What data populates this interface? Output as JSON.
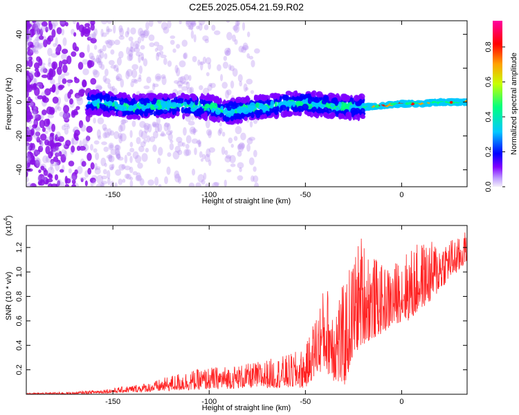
{
  "figure": {
    "title": "C2E5.2025.054.21.59.R02"
  },
  "chart_data": [
    {
      "type": "heatmap",
      "xlabel": "Height of straight line (km)",
      "ylabel": "Frequency (Hz)",
      "xlim": [
        -195,
        34
      ],
      "ylim": [
        -50,
        48
      ],
      "xticks": [
        -150,
        -100,
        -50,
        0
      ],
      "yticks": [
        -40,
        -20,
        0,
        20,
        40
      ],
      "xtick_labels": [
        "-150",
        "-100",
        "-50",
        "0"
      ],
      "ytick_labels": [
        "-40",
        "-20",
        "0",
        "20",
        "40"
      ],
      "colorbar": {
        "label": "Normalized spectral amplitude",
        "range": [
          0,
          0.95
        ],
        "ticks": [
          0.0,
          0.2,
          0.4,
          0.6,
          0.8
        ],
        "tick_labels": [
          "0.0",
          "0.2",
          "0.4",
          "0.6",
          "0.8"
        ],
        "colormap": [
          "#f4f0fa",
          "#8000ff",
          "#0000ff",
          "#00c8ff",
          "#00ff80",
          "#c8ff00",
          "#ffa000",
          "#ff0000",
          "#ff00a0"
        ]
      },
      "center_trace": [
        [
          -160,
          0
        ],
        [
          -140,
          -3
        ],
        [
          -120,
          -2
        ],
        [
          -100,
          -3
        ],
        [
          -90,
          -6
        ],
        [
          -80,
          -4
        ],
        [
          -70,
          -3
        ],
        [
          -60,
          -1
        ],
        [
          -50,
          -1
        ],
        [
          -40,
          -2
        ],
        [
          -30,
          -3
        ],
        [
          -20,
          -3
        ],
        [
          -10,
          -2
        ],
        [
          0,
          -1
        ],
        [
          10,
          -1
        ],
        [
          20,
          0
        ],
        [
          30,
          0
        ]
      ],
      "grid": false
    },
    {
      "type": "line",
      "xlabel": "Height of straight line (km)",
      "ylabel": "SNR (10 * v/v)",
      "y_multiplier": "(x10",
      "y_multiplier_exp": "4",
      "y_multiplier_close": ")",
      "xlim": [
        -195,
        34
      ],
      "ylim": [
        0,
        1.38
      ],
      "xticks": [
        -150,
        -100,
        -50,
        0
      ],
      "yticks": [
        0.2,
        0.4,
        0.6,
        0.8,
        1.0,
        1.2
      ],
      "xtick_labels": [
        "-150",
        "-100",
        "-50",
        "0"
      ],
      "ytick_labels": [
        "0.2",
        "0.4",
        "0.6",
        "0.8",
        "1.0",
        "1.2"
      ],
      "series": [
        {
          "color": "#ff2020",
          "envelope": {
            "x": [
              -195,
              -170,
              -150,
              -130,
              -115,
              -100,
              -80,
              -60,
              -50,
              -45,
              -40,
              -35,
              -30,
              -25,
              -21,
              -15,
              -10,
              -5,
              0,
              5,
              10,
              15,
              20,
              25,
              30,
              34
            ],
            "base": [
              0.0,
              0.0,
              0.01,
              0.02,
              0.03,
              0.04,
              0.05,
              0.05,
              0.05,
              0.15,
              0.2,
              0.1,
              0.05,
              0.3,
              0.4,
              0.45,
              0.5,
              0.55,
              0.6,
              0.6,
              0.7,
              0.75,
              0.85,
              0.95,
              1.0,
              1.1
            ],
            "peak": [
              0.01,
              0.02,
              0.05,
              0.1,
              0.18,
              0.22,
              0.25,
              0.32,
              0.38,
              0.65,
              0.9,
              0.85,
              0.9,
              1.15,
              1.32,
              1.15,
              1.05,
              1.05,
              1.15,
              1.2,
              1.25,
              1.25,
              1.27,
              1.28,
              1.28,
              1.35
            ]
          }
        }
      ],
      "grid": false
    }
  ]
}
